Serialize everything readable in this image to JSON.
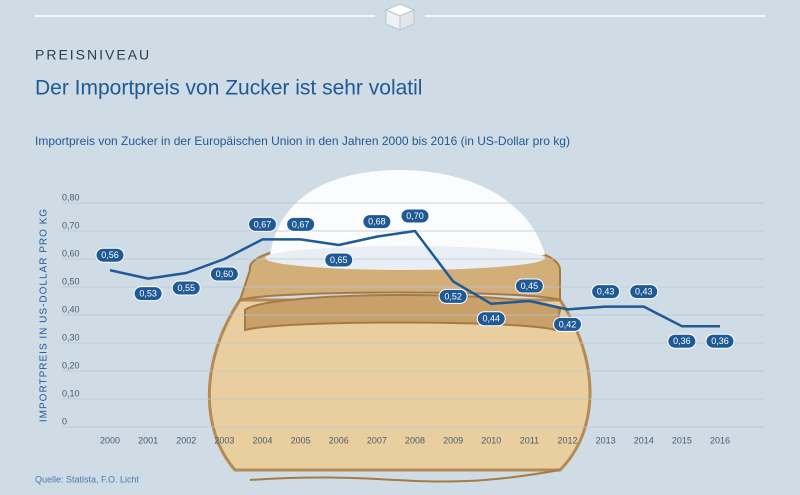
{
  "chart_data": {
    "type": "line",
    "kicker": "PREISNIVEAU",
    "title": "Der Importpreis von Zucker ist sehr volatil",
    "subtitle": "Importpreis von Zucker in der Europäischen Union in den Jahren 2000 bis 2016 (in US-Dollar pro kg)",
    "y_label": "IMPORTPREIS IN US-DOLLAR PRO KG",
    "source": "Quelle: Statista, F.O. Licht",
    "categories": [
      "2000",
      "2001",
      "2002",
      "2003",
      "2004",
      "2005",
      "2006",
      "2007",
      "2008",
      "2009",
      "2010",
      "2011",
      "2012",
      "2013",
      "2014",
      "2015",
      "2016"
    ],
    "values": [
      0.56,
      0.53,
      0.55,
      0.6,
      0.67,
      0.67,
      0.65,
      0.68,
      0.7,
      0.52,
      0.44,
      0.45,
      0.42,
      0.43,
      0.43,
      0.36,
      0.36
    ],
    "value_labels": [
      "0,56",
      "0,53",
      "0,55",
      "0,60",
      "0,67",
      "0,67",
      "0,65",
      "0,68",
      "0,70",
      "0,52",
      "0,44",
      "0,45",
      "0,42",
      "0,43",
      "0,43",
      "0,36",
      "0,36"
    ],
    "color": "#1f5a96",
    "ylim": [
      0,
      0.8
    ],
    "yticks": [
      0,
      {
        "value": 0.1,
        "label": "0,10"
      },
      {
        "value": 0.2,
        "label": "0,20"
      },
      {
        "value": 0.3,
        "label": "0,30"
      },
      {
        "value": 0.4,
        "label": "0,40"
      },
      {
        "value": 0.5,
        "label": "0,50"
      },
      {
        "value": 0.6,
        "label": "0,60"
      },
      {
        "value": 0.7,
        "label": "0,70"
      },
      {
        "value": 0.8,
        "label": "0,80"
      }
    ],
    "grid": true
  }
}
